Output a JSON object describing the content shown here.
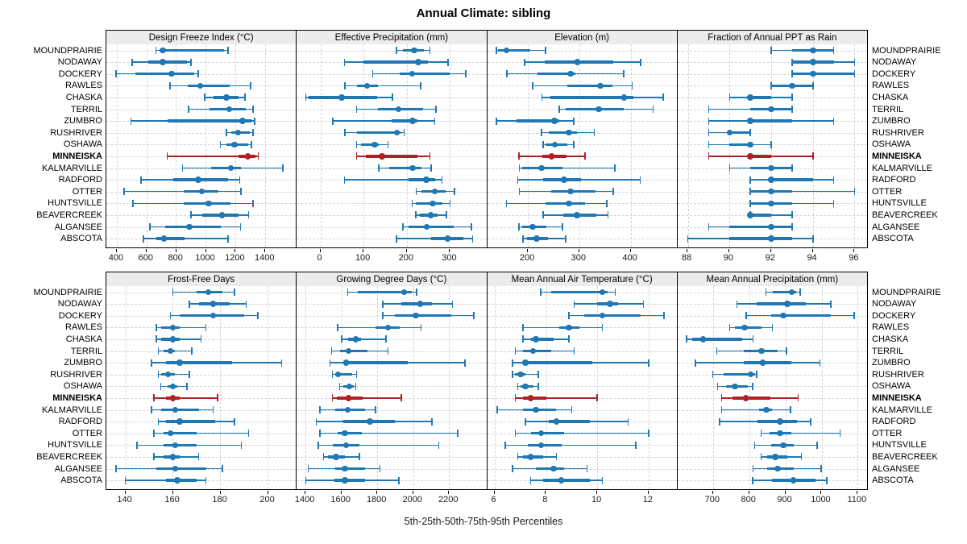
{
  "title": "Annual Climate: sibling",
  "footer": "5th-25th-50th-75th-95th Percentiles",
  "colors": {
    "series_normal": "#1F78B4",
    "series_highlight": "#B02126",
    "grid": "#D4D4D4",
    "strip_bg": "#ECECEC",
    "panel_border": "#000000"
  },
  "locations": [
    {
      "name": "MOUNDPRAIRIE",
      "highlight": false
    },
    {
      "name": "NODAWAY",
      "highlight": false
    },
    {
      "name": "DOCKERY",
      "highlight": false
    },
    {
      "name": "RAWLES",
      "highlight": false
    },
    {
      "name": "CHASKA",
      "highlight": false
    },
    {
      "name": "TERRIL",
      "highlight": false
    },
    {
      "name": "ZUMBRO",
      "highlight": false
    },
    {
      "name": "RUSHRIVER",
      "highlight": false
    },
    {
      "name": "OSHAWA",
      "highlight": false
    },
    {
      "name": "MINNEISKA",
      "highlight": true
    },
    {
      "name": "KALMARVILLE",
      "highlight": false
    },
    {
      "name": "RADFORD",
      "highlight": false
    },
    {
      "name": "OTTER",
      "highlight": false
    },
    {
      "name": "HUNTSVILLE",
      "highlight": false
    },
    {
      "name": "BEAVERCREEK",
      "highlight": false
    },
    {
      "name": "ALGANSEE",
      "highlight": false
    },
    {
      "name": "ABSCOTA",
      "highlight": false
    }
  ],
  "chart_data": {
    "type": "dotplot-percentiles",
    "percentile_labels": [
      "5th",
      "25th",
      "50th",
      "75th",
      "95th"
    ],
    "note": "Each row shows 5th-25th-50th-75th-95th percentiles: thin line 5-95, thick bar 25-75, dot 50",
    "panels": [
      {
        "title": "Design Freeze Index (°C)",
        "band": 0,
        "xlim": [
          330,
          1610
        ],
        "ticks": [
          400,
          600,
          800,
          1000,
          1200,
          1400
        ],
        "values": [
          [
            665,
            690,
            710,
            1125,
            1150
          ],
          [
            505,
            615,
            710,
            875,
            900
          ],
          [
            395,
            525,
            770,
            925,
            950
          ],
          [
            760,
            880,
            965,
            1160,
            1305
          ],
          [
            995,
            1055,
            1140,
            1220,
            1265
          ],
          [
            885,
            1025,
            1160,
            1270,
            1320
          ],
          [
            495,
            745,
            1250,
            1310,
            1330
          ],
          [
            1140,
            1175,
            1220,
            1300,
            1320
          ],
          [
            1100,
            1140,
            1195,
            1285,
            1310
          ],
          [
            740,
            1225,
            1285,
            1335,
            1355
          ],
          [
            845,
            1040,
            1170,
            1240,
            1520
          ],
          [
            565,
            780,
            950,
            1150,
            1230
          ],
          [
            450,
            850,
            975,
            1085,
            1240
          ],
          [
            510,
            850,
            1020,
            1170,
            1320
          ],
          [
            900,
            980,
            1110,
            1220,
            1290
          ],
          [
            625,
            725,
            890,
            1100,
            1235
          ],
          [
            580,
            670,
            720,
            860,
            1150
          ]
        ]
      },
      {
        "title": "Effective Precipitation (mm)",
        "band": 0,
        "xlim": [
          -55,
          385
        ],
        "ticks": [
          0,
          100,
          200,
          300
        ],
        "values": [
          [
            177,
            191,
            218,
            241,
            254
          ],
          [
            56,
            99,
            227,
            249,
            296
          ],
          [
            121,
            184,
            213,
            299,
            337
          ],
          [
            57,
            84,
            108,
            134,
            233
          ],
          [
            -34,
            -28,
            49,
            132,
            167
          ],
          [
            84,
            134,
            181,
            238,
            268
          ],
          [
            29,
            166,
            214,
            225,
            265
          ],
          [
            57,
            85,
            177,
            186,
            194
          ],
          [
            84,
            94,
            126,
            135,
            157
          ],
          [
            84,
            105,
            143,
            226,
            254
          ],
          [
            135,
            160,
            214,
            235,
            257
          ],
          [
            56,
            204,
            246,
            266,
            282
          ],
          [
            222,
            235,
            265,
            291,
            311
          ],
          [
            213,
            221,
            261,
            284,
            301
          ],
          [
            221,
            230,
            256,
            272,
            292
          ],
          [
            191,
            204,
            247,
            310,
            350
          ],
          [
            177,
            257,
            295,
            332,
            353
          ]
        ]
      },
      {
        "title": "Elevation (m)",
        "band": 0,
        "xlim": [
          120,
          490
        ],
        "ticks": [
          200,
          300,
          400
        ],
        "values": [
          [
            138,
            142,
            158,
            204,
            234
          ],
          [
            193,
            233,
            296,
            366,
            420
          ],
          [
            159,
            219,
            283,
            293,
            387
          ],
          [
            209,
            277,
            341,
            364,
            403
          ],
          [
            227,
            243,
            387,
            406,
            464
          ],
          [
            261,
            273,
            338,
            387,
            444
          ],
          [
            138,
            177,
            251,
            261,
            289
          ],
          [
            226,
            240,
            280,
            295,
            329
          ],
          [
            229,
            234,
            252,
            277,
            289
          ],
          [
            182,
            227,
            246,
            275,
            311
          ],
          [
            183,
            188,
            226,
            267,
            369
          ],
          [
            180,
            229,
            270,
            303,
            419
          ],
          [
            183,
            245,
            283,
            332,
            366
          ],
          [
            158,
            234,
            280,
            311,
            354
          ],
          [
            229,
            269,
            295,
            333,
            356
          ],
          [
            182,
            188,
            209,
            235,
            267
          ],
          [
            190,
            198,
            217,
            238,
            273
          ]
        ]
      },
      {
        "title": "Fraction of Annual PPT as Rain",
        "band": 0,
        "xlim": [
          87.5,
          96.6
        ],
        "ticks": [
          88,
          90,
          92,
          94,
          96
        ],
        "values": [
          [
            92,
            93,
            94,
            95,
            95
          ],
          [
            93,
            93,
            94,
            95,
            96
          ],
          [
            93,
            93,
            94,
            96,
            96
          ],
          [
            92,
            92,
            93,
            94,
            94
          ],
          [
            90,
            91,
            91,
            92,
            93
          ],
          [
            89,
            91,
            92,
            93,
            93
          ],
          [
            89,
            91,
            91,
            93,
            95
          ],
          [
            89,
            90,
            90,
            91,
            91
          ],
          [
            89,
            90,
            91,
            91,
            92
          ],
          [
            89,
            91,
            91,
            92,
            94
          ],
          [
            90,
            91,
            92,
            93,
            93
          ],
          [
            91,
            92,
            92,
            94,
            95
          ],
          [
            91,
            91,
            92,
            93,
            96
          ],
          [
            91,
            91,
            92,
            93,
            95
          ],
          [
            91,
            91,
            91,
            92,
            93
          ],
          [
            89,
            90,
            92,
            93,
            93
          ],
          [
            88,
            90,
            92,
            93,
            94
          ]
        ]
      },
      {
        "title": "Frost-Free Days",
        "band": 1,
        "xlim": [
          132,
          212
        ],
        "ticks": [
          140,
          160,
          180,
          200
        ],
        "values": [
          [
            160,
            170,
            175,
            181,
            186
          ],
          [
            167,
            171,
            177,
            184,
            191
          ],
          [
            159,
            163,
            177,
            190,
            196
          ],
          [
            153,
            155,
            160,
            163,
            174
          ],
          [
            153,
            155,
            160,
            163,
            172
          ],
          [
            154,
            156,
            159,
            161,
            168
          ],
          [
            151,
            157,
            163,
            185,
            206
          ],
          [
            154,
            155,
            158,
            161,
            167
          ],
          [
            155,
            158,
            160,
            162,
            166
          ],
          [
            152,
            157,
            160,
            163,
            179
          ],
          [
            151,
            155,
            161,
            171,
            177
          ],
          [
            154,
            157,
            163,
            178,
            186
          ],
          [
            152,
            156,
            159,
            170,
            192
          ],
          [
            145,
            156,
            161,
            170,
            189
          ],
          [
            152,
            156,
            160,
            163,
            171
          ],
          [
            136,
            153,
            161,
            174,
            181
          ],
          [
            140,
            157,
            162,
            170,
            174
          ]
        ]
      },
      {
        "title": "Growing Degree Days (°C)",
        "band": 1,
        "xlim": [
          1350,
          2410
        ],
        "ticks": [
          1400,
          1600,
          1800,
          2000,
          2200
        ],
        "values": [
          [
            1635,
            1690,
            1950,
            1995,
            2020
          ],
          [
            1830,
            1935,
            2040,
            2105,
            2220
          ],
          [
            1830,
            1900,
            2015,
            2215,
            2340
          ],
          [
            1580,
            1790,
            1860,
            1925,
            2045
          ],
          [
            1600,
            1635,
            1680,
            1710,
            1850
          ],
          [
            1545,
            1590,
            1640,
            1745,
            1860
          ],
          [
            1535,
            1615,
            1625,
            1970,
            2290
          ],
          [
            1550,
            1565,
            1580,
            1660,
            1685
          ],
          [
            1590,
            1610,
            1645,
            1670,
            1680
          ],
          [
            1550,
            1575,
            1640,
            1720,
            1935
          ],
          [
            1480,
            1565,
            1635,
            1730,
            1790
          ],
          [
            1460,
            1610,
            1760,
            1900,
            2105
          ],
          [
            1480,
            1580,
            1620,
            1715,
            2250
          ],
          [
            1470,
            1550,
            1625,
            1700,
            2145
          ],
          [
            1500,
            1525,
            1570,
            1620,
            1700
          ],
          [
            1415,
            1565,
            1620,
            1730,
            1815
          ],
          [
            1400,
            1560,
            1620,
            1730,
            1920
          ]
        ]
      },
      {
        "title": "Mean Annual Air Temperature (°C)",
        "band": 1,
        "xlim": [
          5.7,
          13.1
        ],
        "ticks": [
          6,
          8,
          10,
          12
        ],
        "values": [
          [
            7.8,
            8.2,
            10.2,
            10.4,
            10.7
          ],
          [
            9.1,
            10.0,
            10.5,
            10.8,
            11.8
          ],
          [
            8.9,
            9.5,
            10.2,
            11.7,
            12.6
          ],
          [
            7.1,
            8.5,
            8.9,
            9.3,
            10.2
          ],
          [
            7.1,
            7.4,
            7.6,
            8.3,
            8.9
          ],
          [
            6.8,
            7.1,
            7.5,
            8.2,
            9.1
          ],
          [
            6.7,
            7.1,
            7.2,
            9.8,
            12.0
          ],
          [
            6.7,
            6.8,
            7.0,
            7.2,
            7.7
          ],
          [
            6.9,
            7.0,
            7.2,
            7.5,
            7.7
          ],
          [
            6.8,
            7.1,
            7.4,
            8.0,
            10.0
          ],
          [
            6.1,
            7.1,
            7.6,
            8.4,
            9.0
          ],
          [
            7.2,
            8.1,
            8.4,
            9.7,
            11.2
          ],
          [
            6.8,
            7.4,
            7.8,
            8.7,
            12.0
          ],
          [
            6.4,
            7.3,
            7.8,
            8.6,
            11.5
          ],
          [
            6.9,
            7.1,
            7.4,
            7.9,
            8.4
          ],
          [
            6.7,
            7.6,
            8.3,
            8.7,
            9.6
          ],
          [
            7.4,
            7.9,
            8.6,
            9.7,
            10.2
          ]
        ]
      },
      {
        "title": "Mean Annual Precipitation (mm)",
        "band": 1,
        "xlim": [
          600,
          1126
        ],
        "ticks": [
          700,
          800,
          900,
          1000,
          1100
        ],
        "values": [
          [
            845,
            865,
            917,
            930,
            940
          ],
          [
            765,
            820,
            905,
            955,
            1025
          ],
          [
            790,
            860,
            893,
            1025,
            1090
          ],
          [
            745,
            760,
            786,
            833,
            863
          ],
          [
            625,
            640,
            671,
            779,
            810
          ],
          [
            709,
            784,
            833,
            877,
            902
          ],
          [
            650,
            785,
            837,
            915,
            995
          ],
          [
            698,
            728,
            803,
            815,
            820
          ],
          [
            711,
            735,
            759,
            794,
            809
          ],
          [
            722,
            752,
            789,
            857,
            935
          ],
          [
            722,
            826,
            846,
            863,
            914
          ],
          [
            717,
            822,
            884,
            931,
            969
          ],
          [
            832,
            856,
            884,
            916,
            1051
          ],
          [
            814,
            859,
            893,
            923,
            987
          ],
          [
            832,
            848,
            871,
            904,
            944
          ],
          [
            810,
            848,
            878,
            923,
            998
          ],
          [
            809,
            863,
            921,
            982,
            1014
          ]
        ]
      }
    ]
  }
}
